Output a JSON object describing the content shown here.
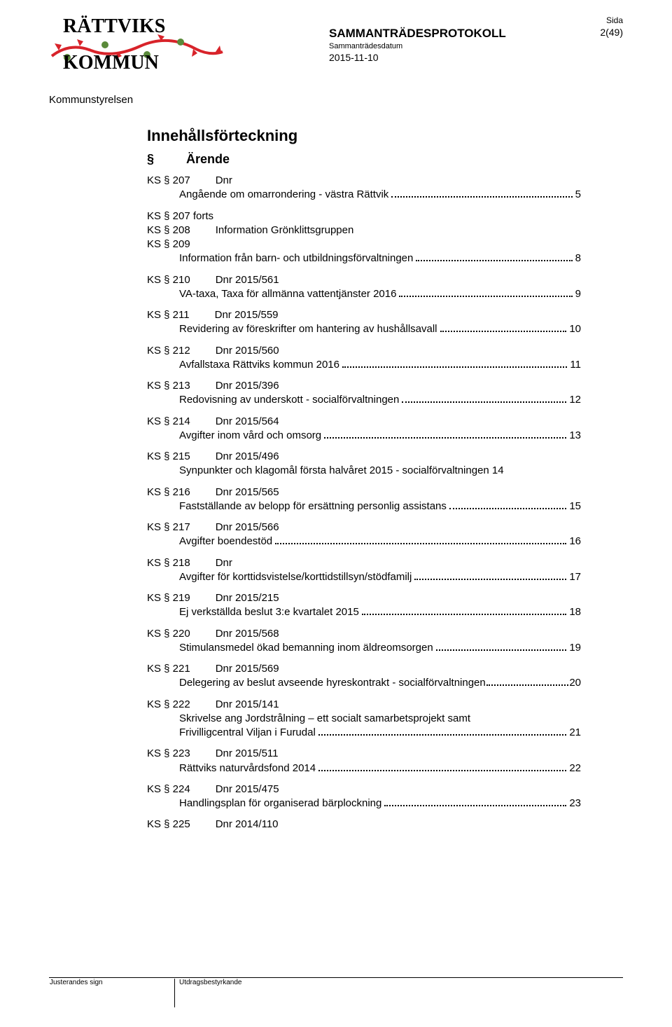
{
  "header": {
    "logo_line1": "RÄTTVIKS",
    "logo_line2": "KOMMUN",
    "protokoll_title": "SAMMANTRÄDESPROTOKOLL",
    "sida_label": "Sida",
    "page_num": "2(49)",
    "date_label": "Sammanträdesdatum",
    "date_val": "2015-11-10"
  },
  "section_title": "Kommunstyrelsen",
  "toc": {
    "heading": "Innehållsförteckning",
    "col1": "§",
    "col2": "Ärende",
    "entries": [
      {
        "ks": "KS § 207",
        "dnr": "Dnr",
        "desc": "Angående om omarrondering - västra Rättvik",
        "page": "5"
      },
      {
        "ks": "KS § 207 forts",
        "dnr": "",
        "desc": "",
        "page": "",
        "nopage": true,
        "nodots": true
      },
      {
        "ks": "KS § 208",
        "dnr": "Information Grönklittsgruppen",
        "desc": "",
        "page": "",
        "nopage": true,
        "nodots": true,
        "inline": true
      },
      {
        "ks": "KS § 209",
        "dnr": "",
        "desc": "Information från barn- och utbildningsförvaltningen",
        "page": "8",
        "inline": true
      },
      {
        "ks": "KS § 210",
        "dnr": "Dnr 2015/561",
        "desc": "VA-taxa, Taxa för allmänna vattentjänster 2016",
        "page": "9"
      },
      {
        "ks": "KS § 211",
        "dnr": "Dnr 2015/559",
        "desc": "Revidering av föreskrifter om hantering av hushållsavall",
        "page": "10"
      },
      {
        "ks": "KS § 212",
        "dnr": "Dnr 2015/560",
        "desc": "Avfallstaxa Rättviks kommun 2016",
        "page": "11"
      },
      {
        "ks": "KS § 213",
        "dnr": "Dnr 2015/396",
        "desc": "Redovisning av underskott - socialförvaltningen",
        "page": "12"
      },
      {
        "ks": "KS § 214",
        "dnr": "Dnr 2015/564",
        "desc": "Avgifter inom vård och omsorg",
        "page": "13"
      },
      {
        "ks": "KS § 215",
        "dnr": "Dnr 2015/496",
        "desc": "Synpunkter och klagomål första halvåret 2015 - socialförvaltningen 14",
        "page": "",
        "nodots": true
      },
      {
        "ks": "KS § 216",
        "dnr": "Dnr 2015/565",
        "desc": "Fastställande av belopp för ersättning personlig assistans",
        "page": "15"
      },
      {
        "ks": "KS § 217",
        "dnr": "Dnr 2015/566",
        "desc": "Avgifter boendestöd",
        "page": "16"
      },
      {
        "ks": "KS § 218",
        "dnr": "Dnr",
        "desc": "Avgifter för korttidsvistelse/korttidstillsyn/stödfamilj",
        "page": "17"
      },
      {
        "ks": "KS § 219",
        "dnr": "Dnr 2015/215",
        "desc": "Ej verkställda beslut 3:e kvartalet 2015",
        "page": "18"
      },
      {
        "ks": "KS § 220",
        "dnr": "Dnr 2015/568",
        "desc": "Stimulansmedel ökad bemanning inom äldreomsorgen",
        "page": "19"
      },
      {
        "ks": "KS § 221",
        "dnr": "Dnr 2015/569",
        "desc": "Delegering av beslut avseende hyreskontrakt - socialförvaltningen",
        "page": "20",
        "tightdots": true
      },
      {
        "ks": "KS § 222",
        "dnr": "Dnr 2015/141",
        "desc_multiline": [
          "Skrivelse ang Jordstrålning – ett socialt samarbetsprojekt samt",
          "Frivilligcentral Viljan i Furudal"
        ],
        "page": "21"
      },
      {
        "ks": "KS § 223",
        "dnr": "Dnr 2015/511",
        "desc": "Rättviks naturvårdsfond 2014",
        "page": "22"
      },
      {
        "ks": "KS § 224",
        "dnr": "Dnr 2015/475",
        "desc": "Handlingsplan för organiserad bärplockning",
        "page": "23"
      },
      {
        "ks": "KS § 225",
        "dnr": "Dnr 2014/110",
        "desc": "",
        "page": "",
        "nopage": true,
        "nodots": true
      }
    ]
  },
  "footer": {
    "left": "Justerandes sign",
    "right": "Utdragsbestyrkande"
  },
  "colors": {
    "logo_red": "#d8232a",
    "logo_green": "#5a8a3a",
    "text": "#000000",
    "background": "#ffffff"
  }
}
